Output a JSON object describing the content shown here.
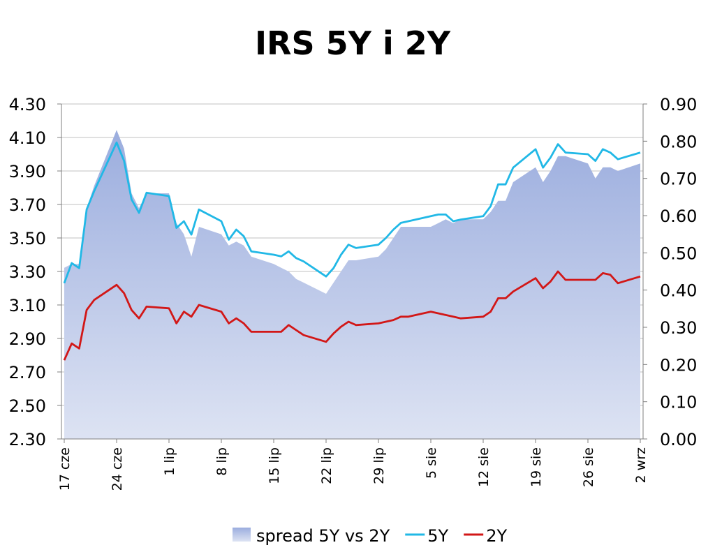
{
  "chart_data": {
    "type": "line",
    "title": "IRS 5Y i 2Y",
    "xlabel": "",
    "ylabel": "",
    "y_left": {
      "min": 2.3,
      "max": 4.3,
      "ticks": [
        "4.30",
        "4.10",
        "3.90",
        "3.70",
        "3.50",
        "3.30",
        "3.10",
        "2.90",
        "2.70",
        "2.50",
        "2.30"
      ]
    },
    "y_right": {
      "min": 0.0,
      "max": 0.9,
      "ticks": [
        "0.90",
        "0.80",
        "0.70",
        "0.60",
        "0.50",
        "0.40",
        "0.30",
        "0.20",
        "0.10",
        "0.00"
      ]
    },
    "x_axis": {
      "first_day": 0,
      "last_day": 77
    },
    "x_tick_labels": [
      {
        "day": 0,
        "label": "17 cze"
      },
      {
        "day": 7,
        "label": "24 cze"
      },
      {
        "day": 14,
        "label": "1 lip"
      },
      {
        "day": 21,
        "label": "8 lip"
      },
      {
        "day": 28,
        "label": "15 lip"
      },
      {
        "day": 35,
        "label": "22 lip"
      },
      {
        "day": 42,
        "label": "29 lip"
      },
      {
        "day": 49,
        "label": "5 sie"
      },
      {
        "day": 56,
        "label": "12 sie"
      },
      {
        "day": 63,
        "label": "19 sie"
      },
      {
        "day": 70,
        "label": "26 sie"
      },
      {
        "day": 77,
        "label": "2 wrz"
      }
    ],
    "days": [
      0,
      1,
      2,
      3,
      4,
      7,
      8,
      9,
      10,
      11,
      14,
      15,
      16,
      17,
      18,
      21,
      22,
      23,
      24,
      25,
      28,
      29,
      30,
      31,
      32,
      35,
      36,
      37,
      38,
      39,
      42,
      43,
      44,
      45,
      46,
      49,
      50,
      51,
      52,
      53,
      56,
      57,
      58,
      59,
      60,
      63,
      64,
      65,
      66,
      67,
      70,
      71,
      72,
      73,
      74,
      77
    ],
    "series": [
      {
        "name": "spread 5Y vs 2Y",
        "axis": "right",
        "type": "area",
        "values": [
          0.46,
          0.47,
          0.47,
          0.62,
          0.68,
          0.83,
          0.78,
          0.66,
          0.62,
          0.66,
          0.66,
          0.58,
          0.55,
          0.49,
          0.57,
          0.55,
          0.52,
          0.53,
          0.52,
          0.49,
          0.47,
          0.46,
          0.45,
          0.43,
          0.42,
          0.39,
          0.42,
          0.45,
          0.48,
          0.48,
          0.49,
          0.51,
          0.54,
          0.57,
          0.57,
          0.57,
          0.58,
          0.59,
          0.58,
          0.59,
          0.59,
          0.61,
          0.64,
          0.64,
          0.69,
          0.73,
          0.69,
          0.72,
          0.76,
          0.76,
          0.74,
          0.7,
          0.73,
          0.73,
          0.72,
          0.74
        ]
      },
      {
        "name": "5Y",
        "axis": "left",
        "type": "line",
        "values": [
          3.23,
          3.35,
          3.32,
          3.67,
          3.78,
          4.07,
          3.96,
          3.73,
          3.65,
          3.77,
          3.75,
          3.56,
          3.6,
          3.52,
          3.67,
          3.6,
          3.49,
          3.55,
          3.51,
          3.42,
          3.4,
          3.39,
          3.42,
          3.38,
          3.36,
          3.27,
          3.32,
          3.4,
          3.46,
          3.44,
          3.46,
          3.5,
          3.55,
          3.59,
          3.6,
          3.63,
          3.64,
          3.64,
          3.6,
          3.61,
          3.63,
          3.69,
          3.82,
          3.82,
          3.92,
          4.03,
          3.92,
          3.98,
          4.06,
          4.01,
          4.0,
          3.96,
          4.03,
          4.01,
          3.97,
          4.01
        ]
      },
      {
        "name": "2Y",
        "axis": "left",
        "type": "line",
        "values": [
          2.77,
          2.87,
          2.84,
          3.07,
          3.13,
          3.22,
          3.17,
          3.07,
          3.02,
          3.09,
          3.08,
          2.99,
          3.06,
          3.03,
          3.1,
          3.06,
          2.99,
          3.02,
          2.99,
          2.94,
          2.94,
          2.94,
          2.98,
          2.95,
          2.92,
          2.88,
          2.93,
          2.97,
          3.0,
          2.98,
          2.99,
          3.0,
          3.01,
          3.03,
          3.03,
          3.06,
          3.05,
          3.04,
          3.03,
          3.02,
          3.03,
          3.06,
          3.14,
          3.14,
          3.18,
          3.26,
          3.2,
          3.24,
          3.3,
          3.25,
          3.25,
          3.25,
          3.29,
          3.28,
          3.23,
          3.27
        ]
      }
    ],
    "legend_position": "bottom",
    "grid": true
  },
  "colors": {
    "area_top": "#9badde",
    "area_bottom": "#dde3f3",
    "line_5y": "#21b8e6",
    "line_2y": "#d21717",
    "grid": "#c0c0c0",
    "axis": "#7f7f7f"
  },
  "legend": [
    {
      "label": "spread 5Y vs 2Y",
      "kind": "area"
    },
    {
      "label": "5Y",
      "kind": "line-5y"
    },
    {
      "label": "2Y",
      "kind": "line-2y"
    }
  ]
}
